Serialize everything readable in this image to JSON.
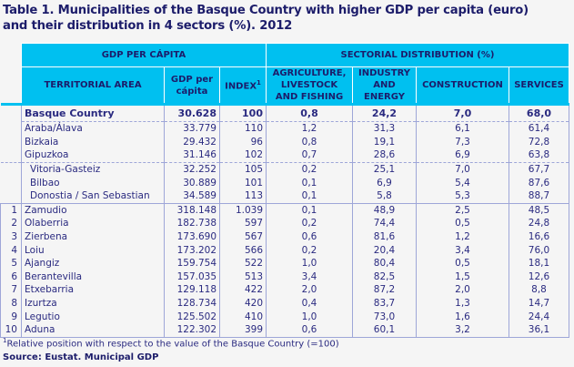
{
  "title_line1": "Table 1. Municipalities of the Basque Country with higher GDP per capita (euro)",
  "title_line2": "and their distribution in 4 sectors (%). 2012",
  "header": {
    "group1": "GDP PER CÁPITA",
    "group2": "SECTORIAL DISTRIBUTION (%)",
    "territorial": "TERRITORIAL AREA",
    "gdp": "GDP per cápita",
    "index": "INDEX",
    "index_sup": "1",
    "agri": "AGRICULTURE, LIVESTOCK AND FISHING",
    "industry": "INDUSTRY AND ENERGY",
    "construction": "CONSTRUCTION",
    "services": "SERVICES"
  },
  "basque": {
    "name": "Basque Country",
    "gdp": "30.628",
    "index": "100",
    "agri": "0,8",
    "ind": "24,2",
    "con": "7,0",
    "ser": "68,0"
  },
  "provinces": [
    {
      "name": "Araba/Álava",
      "gdp": "33.779",
      "index": "110",
      "agri": "1,2",
      "ind": "31,3",
      "con": "6,1",
      "ser": "61,4"
    },
    {
      "name": "Bizkaia",
      "gdp": "29.432",
      "index": "96",
      "agri": "0,8",
      "ind": "19,1",
      "con": "7,3",
      "ser": "72,8"
    },
    {
      "name": "Gipuzkoa",
      "gdp": "31.146",
      "index": "102",
      "agri": "0,7",
      "ind": "28,6",
      "con": "6,9",
      "ser": "63,8"
    }
  ],
  "capitals": [
    {
      "name": "Vitoria-Gasteiz",
      "gdp": "32.252",
      "index": "105",
      "agri": "0,2",
      "ind": "25,1",
      "con": "7,0",
      "ser": "67,7"
    },
    {
      "name": "Bilbao",
      "gdp": "30.889",
      "index": "101",
      "agri": "0,1",
      "ind": "6,9",
      "con": "5,4",
      "ser": "87,6"
    },
    {
      "name": "Donostia / San Sebastian",
      "gdp": "34.589",
      "index": "113",
      "agri": "0,1",
      "ind": "5,8",
      "con": "5,3",
      "ser": "88,7"
    }
  ],
  "ranked": [
    {
      "rank": "1",
      "name": "Zamudio",
      "gdp": "318.148",
      "index": "1.039",
      "agri": "0,1",
      "ind": "48,9",
      "con": "2,5",
      "ser": "48,5"
    },
    {
      "rank": "2",
      "name": "Olaberria",
      "gdp": "182.738",
      "index": "597",
      "agri": "0,2",
      "ind": "74,4",
      "con": "0,5",
      "ser": "24,8"
    },
    {
      "rank": "3",
      "name": "Zierbena",
      "gdp": "173.690",
      "index": "567",
      "agri": "0,6",
      "ind": "81,6",
      "con": "1,2",
      "ser": "16,6"
    },
    {
      "rank": "4",
      "name": "Loiu",
      "gdp": "173.202",
      "index": "566",
      "agri": "0,2",
      "ind": "20,4",
      "con": "3,4",
      "ser": "76,0"
    },
    {
      "rank": "5",
      "name": "Ajangiz",
      "gdp": "159.754",
      "index": "522",
      "agri": "1,0",
      "ind": "80,4",
      "con": "0,5",
      "ser": "18,1"
    },
    {
      "rank": "6",
      "name": "Berantevilla",
      "gdp": "157.035",
      "index": "513",
      "agri": "3,4",
      "ind": "82,5",
      "con": "1,5",
      "ser": "12,6"
    },
    {
      "rank": "7",
      "name": "Etxebarria",
      "gdp": "129.118",
      "index": "422",
      "agri": "2,0",
      "ind": "87,2",
      "con": "2,0",
      "ser": "8,8"
    },
    {
      "rank": "8",
      "name": "Izurtza",
      "gdp": "128.734",
      "index": "420",
      "agri": "0,4",
      "ind": "83,7",
      "con": "1,3",
      "ser": "14,7"
    },
    {
      "rank": "9",
      "name": "Legutio",
      "gdp": "125.502",
      "index": "410",
      "agri": "1,0",
      "ind": "73,0",
      "con": "1,6",
      "ser": "24,4"
    },
    {
      "rank": "10",
      "name": "Aduna",
      "gdp": "122.302",
      "index": "399",
      "agri": "0,6",
      "ind": "60,1",
      "con": "3,2",
      "ser": "36,1"
    }
  ],
  "footnote_sup": "1",
  "footnote": "Relative position with respect to the value of the Basque Country (=100)",
  "source": "Source: Eustat. Municipal GDP"
}
